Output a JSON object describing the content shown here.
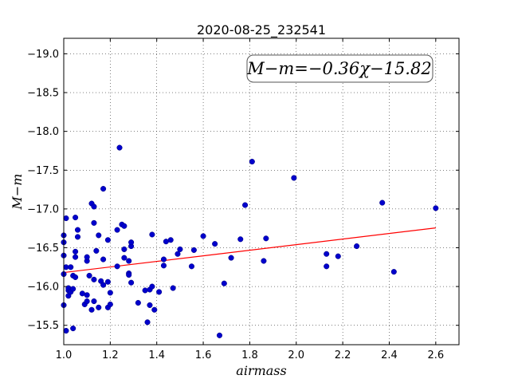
{
  "chart_data": {
    "type": "scatter",
    "title": "2020-08-25_232541",
    "xlabel": "airmass",
    "ylabel": "M−m",
    "xlim": [
      1.0,
      2.7
    ],
    "ylim": [
      -19.2,
      -15.25
    ],
    "y_inverted": true,
    "grid": true,
    "grid_style": "dotted",
    "x_ticks": [
      1.0,
      1.2,
      1.4,
      1.6,
      1.8,
      2.0,
      2.2,
      2.4,
      2.6
    ],
    "x_tick_labels": [
      "1.0",
      "1.2",
      "1.4",
      "1.6",
      "1.8",
      "2.0",
      "2.2",
      "2.4",
      "2.6"
    ],
    "y_ticks": [
      -15.5,
      -16.0,
      -16.5,
      -17.0,
      -17.5,
      -18.0,
      -18.5,
      -19.0
    ],
    "y_tick_labels": [
      "−15.5",
      "−16.0",
      "−16.5",
      "−17.0",
      "−17.5",
      "−18.0",
      "−18.5",
      "−19.0"
    ],
    "annotation": "M−m=−0.36χ−15.82",
    "point_color": "#0000cc",
    "fit_color": "#ff0000",
    "fit": {
      "slope": -0.36,
      "intercept": -15.82,
      "x_range": [
        1.0,
        2.6
      ]
    },
    "series": [
      {
        "points": [
          [
            1.0,
            -15.76
          ],
          [
            1.0,
            -16.16
          ],
          [
            1.0,
            -16.4
          ],
          [
            1.0,
            -16.57
          ],
          [
            1.0,
            -16.66
          ],
          [
            1.01,
            -16.88
          ],
          [
            1.01,
            -15.43
          ],
          [
            1.01,
            -16.25
          ],
          [
            1.02,
            -15.88
          ],
          [
            1.02,
            -15.95
          ],
          [
            1.02,
            -15.98
          ],
          [
            1.03,
            -15.93
          ],
          [
            1.03,
            -16.25
          ],
          [
            1.04,
            -15.46
          ],
          [
            1.04,
            -16.14
          ],
          [
            1.04,
            -15.97
          ],
          [
            1.05,
            -16.12
          ],
          [
            1.05,
            -16.45
          ],
          [
            1.05,
            -16.38
          ],
          [
            1.05,
            -16.89
          ],
          [
            1.06,
            -16.73
          ],
          [
            1.06,
            -16.64
          ],
          [
            1.08,
            -15.91
          ],
          [
            1.09,
            -15.77
          ],
          [
            1.1,
            -15.81
          ],
          [
            1.1,
            -15.89
          ],
          [
            1.1,
            -16.33
          ],
          [
            1.1,
            -16.38
          ],
          [
            1.11,
            -16.14
          ],
          [
            1.12,
            -15.7
          ],
          [
            1.12,
            -17.07
          ],
          [
            1.13,
            -17.03
          ],
          [
            1.13,
            -15.81
          ],
          [
            1.13,
            -16.09
          ],
          [
            1.13,
            -16.82
          ],
          [
            1.14,
            -16.46
          ],
          [
            1.15,
            -15.73
          ],
          [
            1.15,
            -16.66
          ],
          [
            1.16,
            -16.07
          ],
          [
            1.17,
            -16.02
          ],
          [
            1.17,
            -16.35
          ],
          [
            1.17,
            -17.26
          ],
          [
            1.19,
            -15.73
          ],
          [
            1.19,
            -16.06
          ],
          [
            1.19,
            -16.6
          ],
          [
            1.2,
            -15.77
          ],
          [
            1.2,
            -15.92
          ],
          [
            1.23,
            -16.26
          ],
          [
            1.23,
            -16.73
          ],
          [
            1.24,
            -17.79
          ],
          [
            1.25,
            -16.8
          ],
          [
            1.26,
            -16.78
          ],
          [
            1.26,
            -16.48
          ],
          [
            1.26,
            -16.37
          ],
          [
            1.28,
            -16.33
          ],
          [
            1.28,
            -16.17
          ],
          [
            1.28,
            -16.15
          ],
          [
            1.29,
            -16.05
          ],
          [
            1.29,
            -16.52
          ],
          [
            1.29,
            -16.57
          ],
          [
            1.32,
            -15.79
          ],
          [
            1.35,
            -15.95
          ],
          [
            1.36,
            -15.54
          ],
          [
            1.37,
            -15.96
          ],
          [
            1.37,
            -15.76
          ],
          [
            1.38,
            -16.67
          ],
          [
            1.38,
            -16.0
          ],
          [
            1.39,
            -15.7
          ],
          [
            1.41,
            -15.93
          ],
          [
            1.43,
            -16.35
          ],
          [
            1.43,
            -16.27
          ],
          [
            1.44,
            -16.58
          ],
          [
            1.46,
            -16.6
          ],
          [
            1.47,
            -15.98
          ],
          [
            1.49,
            -16.42
          ],
          [
            1.5,
            -16.48
          ],
          [
            1.55,
            -16.26
          ],
          [
            1.56,
            -16.47
          ],
          [
            1.6,
            -16.65
          ],
          [
            1.65,
            -16.55
          ],
          [
            1.67,
            -15.37
          ],
          [
            1.69,
            -16.04
          ],
          [
            1.72,
            -16.37
          ],
          [
            1.76,
            -16.61
          ],
          [
            1.78,
            -17.05
          ],
          [
            1.81,
            -17.61
          ],
          [
            1.86,
            -16.33
          ],
          [
            1.87,
            -16.62
          ],
          [
            1.99,
            -17.4
          ],
          [
            2.13,
            -16.26
          ],
          [
            2.13,
            -16.42
          ],
          [
            2.18,
            -16.39
          ],
          [
            2.26,
            -16.52
          ],
          [
            2.37,
            -17.08
          ],
          [
            2.42,
            -16.19
          ],
          [
            2.6,
            -17.01
          ]
        ]
      }
    ]
  }
}
